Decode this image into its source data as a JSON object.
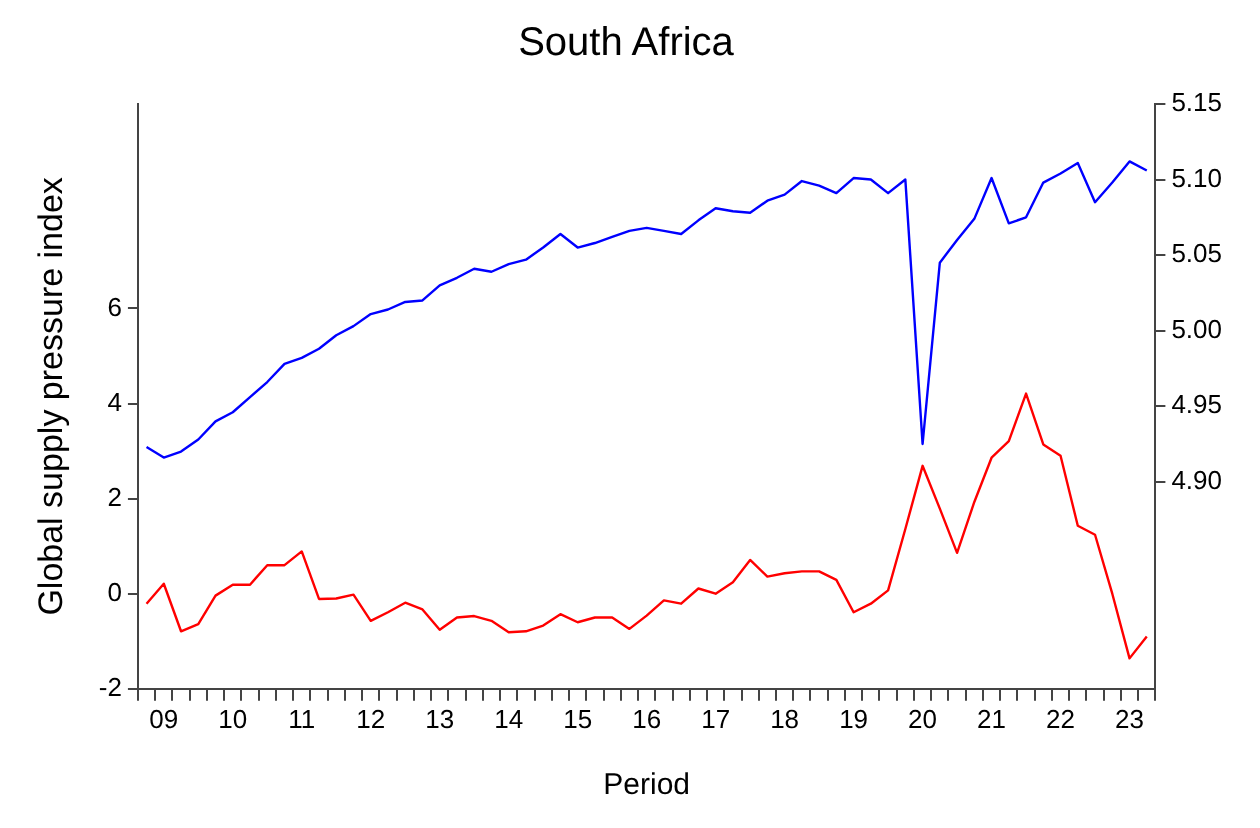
{
  "chart_data": {
    "type": "line",
    "title": "South Africa",
    "xlabel": "Period",
    "ylabel": "Global supply pressure index",
    "categories": [
      null,
      "09",
      null,
      null,
      null,
      "10",
      null,
      null,
      null,
      "11",
      null,
      null,
      null,
      "12",
      null,
      null,
      null,
      "13",
      null,
      null,
      null,
      "14",
      null,
      null,
      null,
      "15",
      null,
      null,
      null,
      "16",
      null,
      null,
      null,
      "17",
      null,
      null,
      null,
      "18",
      null,
      null,
      null,
      "19",
      null,
      null,
      null,
      "20",
      null,
      null,
      null,
      "21",
      null,
      null,
      null,
      "22",
      null,
      null,
      null,
      "23",
      null
    ],
    "series": [
      {
        "color": "#ff0000",
        "values": [
          -0.21,
          0.21,
          -0.79,
          -0.64,
          -0.04,
          0.19,
          0.19,
          0.6,
          0.6,
          0.89,
          -0.11,
          -0.1,
          -0.02,
          -0.57,
          -0.39,
          -0.19,
          -0.33,
          -0.76,
          -0.5,
          -0.47,
          -0.57,
          -0.81,
          -0.79,
          -0.67,
          -0.43,
          -0.6,
          -0.5,
          -0.5,
          -0.74,
          -0.46,
          -0.14,
          -0.21,
          0.11,
          0.0,
          0.24,
          0.71,
          0.36,
          0.43,
          0.47,
          0.47,
          0.29,
          -0.39,
          -0.21,
          0.07,
          1.36,
          2.69,
          1.79,
          0.86,
          1.93,
          2.86,
          3.21,
          4.21,
          3.14,
          2.9,
          1.43,
          1.24,
          0.0,
          -1.36,
          -0.9
        ]
      },
      {
        "color": "#0000ff",
        "axis": "y2",
        "values": [
          4.923,
          4.916,
          4.92,
          4.928,
          4.94,
          4.946,
          4.956,
          4.966,
          4.978,
          4.982,
          4.988,
          4.997,
          5.003,
          5.011,
          5.014,
          5.019,
          5.02,
          5.03,
          5.035,
          5.041,
          5.039,
          5.044,
          5.047,
          5.055,
          5.064,
          5.055,
          5.058,
          5.062,
          5.066,
          5.068,
          5.066,
          5.064,
          5.073,
          5.081,
          5.079,
          5.078,
          5.086,
          5.09,
          5.099,
          5.096,
          5.091,
          5.101,
          5.1,
          5.091,
          5.1,
          4.925,
          5.045,
          5.06,
          5.074,
          5.101,
          5.071,
          5.075,
          5.098,
          5.104,
          5.111,
          5.085,
          5.098,
          5.112,
          5.106
        ]
      }
    ],
    "ylim": [
      -2,
      10.3
    ],
    "yticks": [
      -2,
      0,
      2,
      4,
      6
    ],
    "y2lim": [
      4.763,
      5.15
    ],
    "y2ticks": [
      {
        "value": 4.9,
        "label": "4.90"
      },
      4.95,
      {
        "value": 5.0,
        "label": "5.00"
      },
      5.05,
      {
        "value": 5.1,
        "label": "5.10"
      },
      5.15
    ],
    "grid": false,
    "legend": false,
    "marker": "none",
    "line_style": "solid"
  }
}
